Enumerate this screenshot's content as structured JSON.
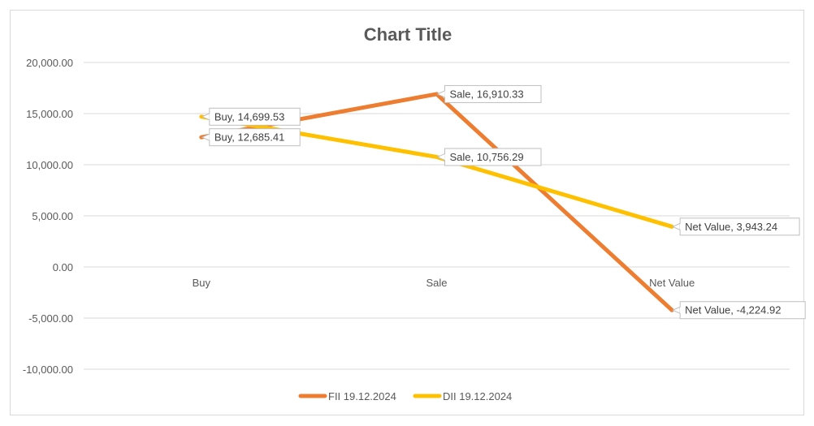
{
  "chart_data": {
    "type": "line",
    "title": "Chart Title",
    "categories": [
      "Buy",
      "Sale",
      "Net Value"
    ],
    "series": [
      {
        "name": "FII 19.12.2024",
        "color": "#ED7D31",
        "values": [
          12685.41,
          16910.33,
          -4224.92
        ],
        "data_labels": [
          "Buy, 12,685.41",
          "Sale, 16,910.33",
          "Net Value, -4,224.92"
        ]
      },
      {
        "name": "DII 19.12.2024",
        "color": "#FFC000",
        "values": [
          14699.53,
          10756.29,
          3943.24
        ],
        "data_labels": [
          "Buy, 14,699.53",
          "Sale, 10,756.29",
          "Net Value, 3,943.24"
        ]
      }
    ],
    "ylim": [
      -10000,
      20000
    ],
    "yticks": [
      20000,
      15000,
      10000,
      5000,
      0,
      -5000,
      -10000
    ],
    "ytick_labels": [
      "20,000.00",
      "15,000.00",
      "10,000.00",
      "5,000.00",
      "0.00",
      "-5,000.00",
      "-10,000.00"
    ],
    "grid": true,
    "legend_position": "bottom",
    "gridline_color": "#d9d9d9"
  }
}
